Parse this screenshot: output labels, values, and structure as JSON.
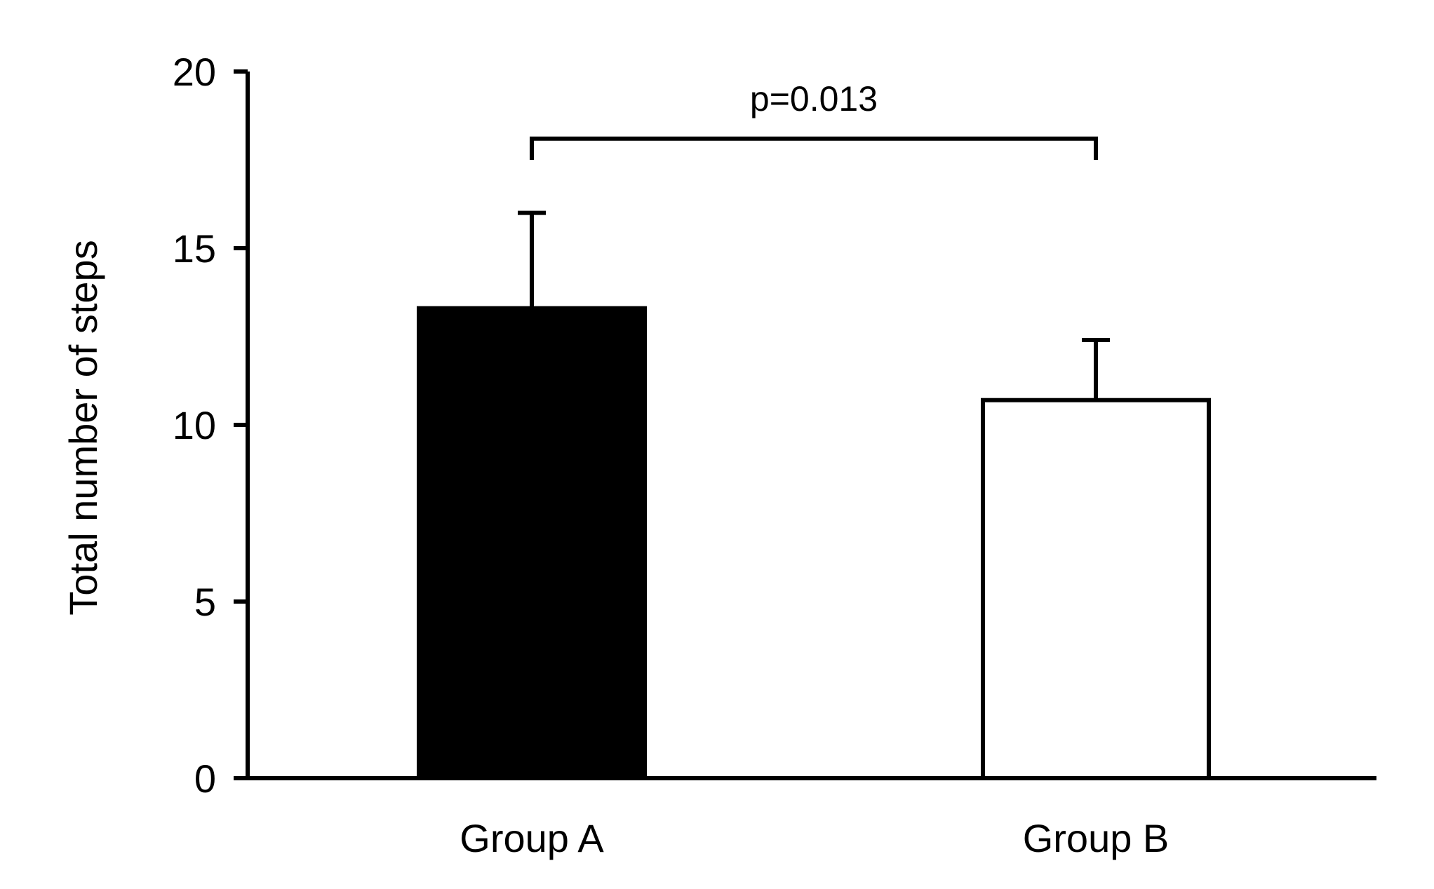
{
  "chart_data": {
    "type": "bar",
    "title": "",
    "xlabel": "",
    "ylabel": "Total number of steps",
    "ylim": [
      0,
      20
    ],
    "yticks": [
      0,
      5,
      10,
      15,
      20
    ],
    "yticks_labels": [
      "0",
      "5",
      "10",
      "15",
      "20"
    ],
    "categories": [
      "Group A",
      "Group B"
    ],
    "values": [
      13.3,
      10.7
    ],
    "errors": [
      2.7,
      1.7
    ],
    "bar_fills": [
      "#000000",
      "#ffffff"
    ],
    "bar_stroke": "#000000",
    "grid": false,
    "legend": "none",
    "annotation": {
      "text": "p=0.013",
      "from_category": "Group A",
      "to_category": "Group B",
      "y": 18.1,
      "tick_down_to": 17.5
    }
  }
}
